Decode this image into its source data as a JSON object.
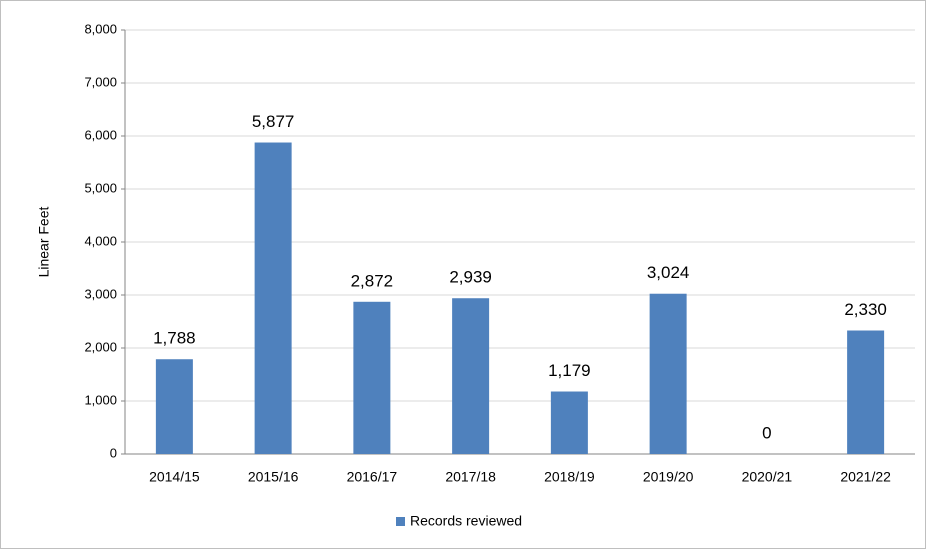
{
  "chart_data": {
    "type": "bar",
    "y_label": "Linear Feet",
    "categories": [
      "2014/15",
      "2015/16",
      "2016/17",
      "2017/18",
      "2018/19",
      "2019/20",
      "2020/21",
      "2021/22"
    ],
    "series": [
      {
        "name": "Records reviewed",
        "color": "#4f81bd",
        "values": [
          1788,
          5877,
          2872,
          2939,
          1179,
          3024,
          0,
          2330
        ],
        "value_labels": [
          "1,788",
          "5,877",
          "2,872",
          "2,939",
          "1,179",
          "3,024",
          "0",
          "2,330"
        ]
      }
    ],
    "ylim": [
      0,
      8000
    ],
    "yticks": [
      0,
      {
        "value": 1000,
        "label": "1,000"
      },
      {
        "value": 2000,
        "label": "2,000"
      },
      {
        "value": 3000,
        "label": "3,000"
      },
      {
        "value": 4000,
        "label": "4,000"
      },
      {
        "value": 5000,
        "label": "5,000"
      },
      {
        "value": 6000,
        "label": "6,000"
      },
      {
        "value": 7000,
        "label": "7,000"
      },
      {
        "value": 8000,
        "label": "8,000"
      }
    ],
    "grid": true,
    "legend": "bottom"
  }
}
